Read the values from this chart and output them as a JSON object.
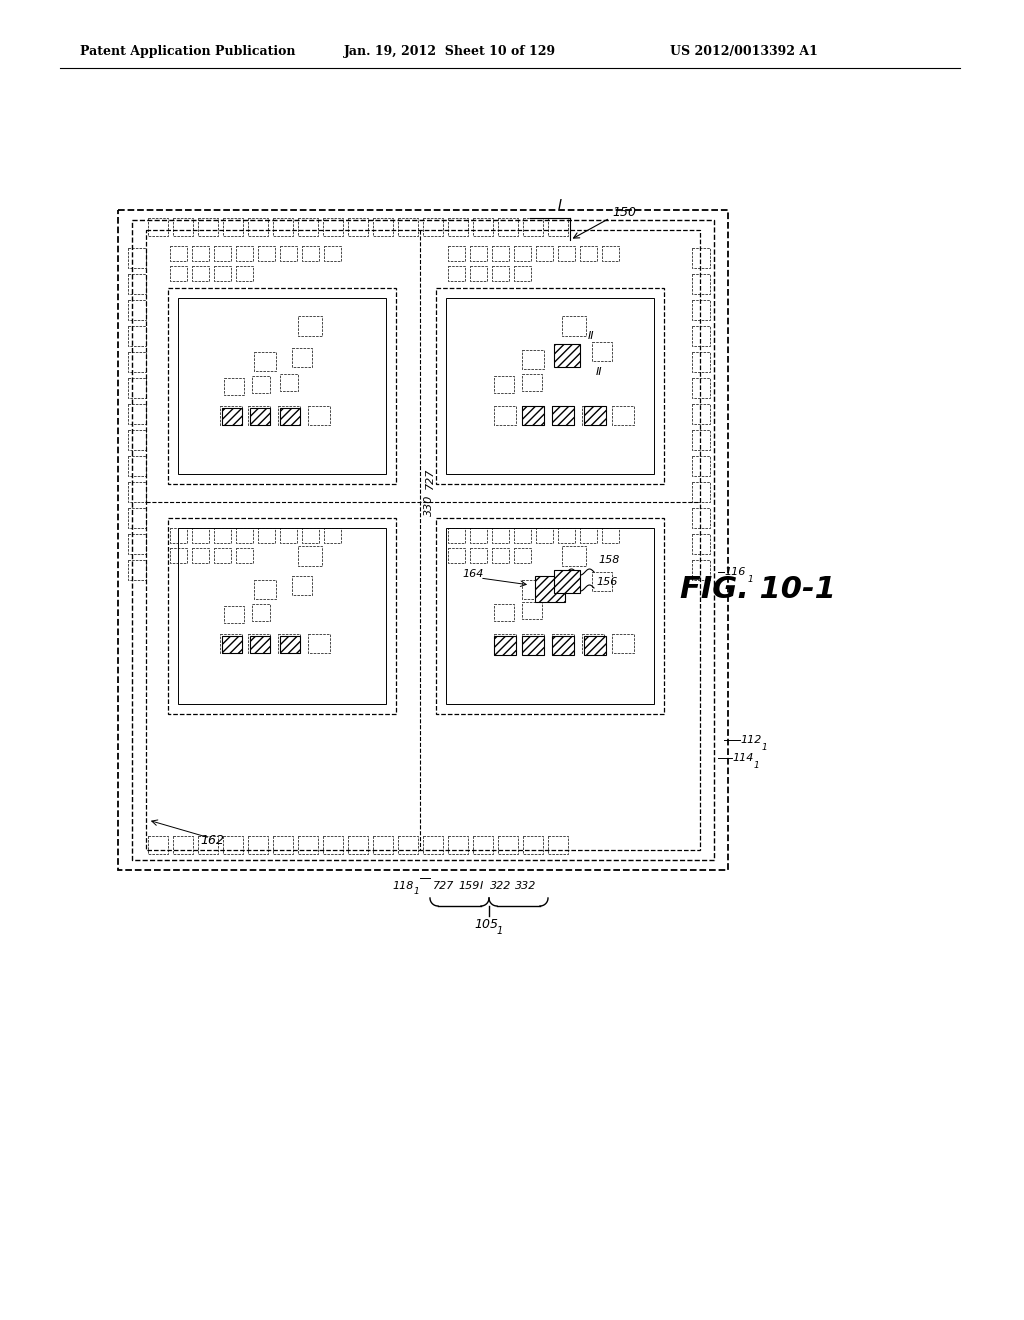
{
  "header_left": "Patent Application Publication",
  "header_mid": "Jan. 19, 2012  Sheet 10 of 129",
  "header_right": "US 2012/0013392 A1",
  "fig_label": "FIG. 10-1",
  "bg_color": "#ffffff",
  "line_color": "#000000"
}
